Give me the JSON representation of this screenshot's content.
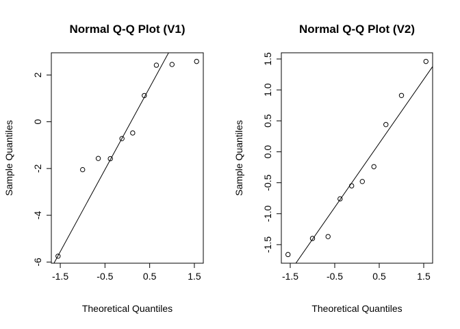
{
  "chart_data": [
    {
      "type": "scatter",
      "title": "Normal Q-Q Plot (V1)",
      "xlabel": "Theoretical Quantiles",
      "ylabel": "Sample Quantiles",
      "xlim": [
        -1.7,
        1.7
      ],
      "ylim": [
        -6.05,
        2.95
      ],
      "xticks": [
        -1.5,
        -0.5,
        0.5,
        1.5
      ],
      "yticks": [
        -6,
        -4,
        -2,
        0,
        2
      ],
      "x": [
        -1.55,
        -1.0,
        -0.65,
        -0.38,
        -0.12,
        0.12,
        0.38,
        0.65,
        1.0,
        1.55
      ],
      "y": [
        -5.75,
        -2.05,
        -1.57,
        -1.58,
        -0.72,
        -0.48,
        1.12,
        2.42,
        2.45,
        2.58
      ],
      "reference_line": {
        "slope": 3.51,
        "intercept": -0.29
      }
    },
    {
      "type": "scatter",
      "title": "Normal Q-Q Plot (V2)",
      "xlabel": "Theoretical Quantiles",
      "ylabel": "Sample Quantiles",
      "xlim": [
        -1.7,
        1.7
      ],
      "ylim": [
        -1.8,
        1.6
      ],
      "xticks": [
        -1.5,
        -0.5,
        0.5,
        1.5
      ],
      "yticks": [
        -1.5,
        -1.0,
        -0.5,
        0.0,
        0.5,
        1.0,
        1.5
      ],
      "ytick_labels": [
        "-1.5",
        "-1.0",
        "-0.5",
        "0.0",
        "0.5",
        "1.0",
        "1.5"
      ],
      "x": [
        -1.55,
        -1.0,
        -0.65,
        -0.38,
        -0.12,
        0.12,
        0.38,
        0.65,
        1.0,
        1.55
      ],
      "y": [
        -1.66,
        -1.4,
        -1.37,
        -0.76,
        -0.55,
        -0.48,
        -0.24,
        0.44,
        0.91,
        1.46
      ],
      "reference_line": {
        "slope": 1.034,
        "intercept": -0.38
      }
    }
  ]
}
